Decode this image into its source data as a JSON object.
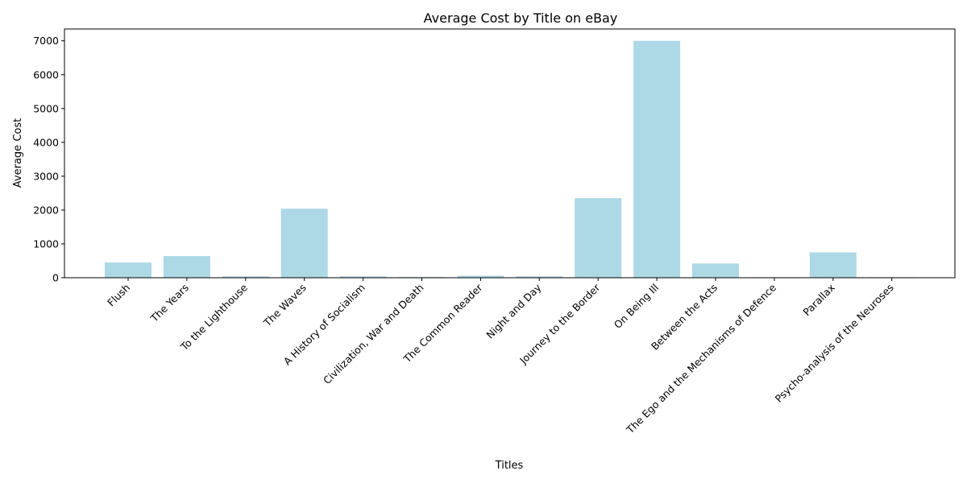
{
  "chart_data": {
    "type": "bar",
    "title": "Average Cost by Title on eBay",
    "xlabel": "Titles",
    "ylabel": "Average Cost",
    "categories": [
      "Flush",
      "The Years",
      "To the Lighthouse",
      "The Waves",
      "A History of Socialism",
      "Civilization, War and Death",
      "The Common Reader",
      "Night and Day",
      "Journey to the Border",
      "On Being Ill",
      "Between the Acts",
      "The Ego and the Mechanisms of Defence",
      "Parallax",
      "Psycho-analysis of the Neuroses"
    ],
    "values": [
      450,
      640,
      40,
      2040,
      40,
      20,
      60,
      40,
      2350,
      7000,
      420,
      15,
      750,
      15
    ],
    "ylim": [
      0,
      7350
    ],
    "yticks": [
      0,
      1000,
      2000,
      3000,
      4000,
      5000,
      6000,
      7000
    ],
    "grid": false,
    "colors": {
      "bar": "#add8e6",
      "axis": "#000000"
    }
  }
}
